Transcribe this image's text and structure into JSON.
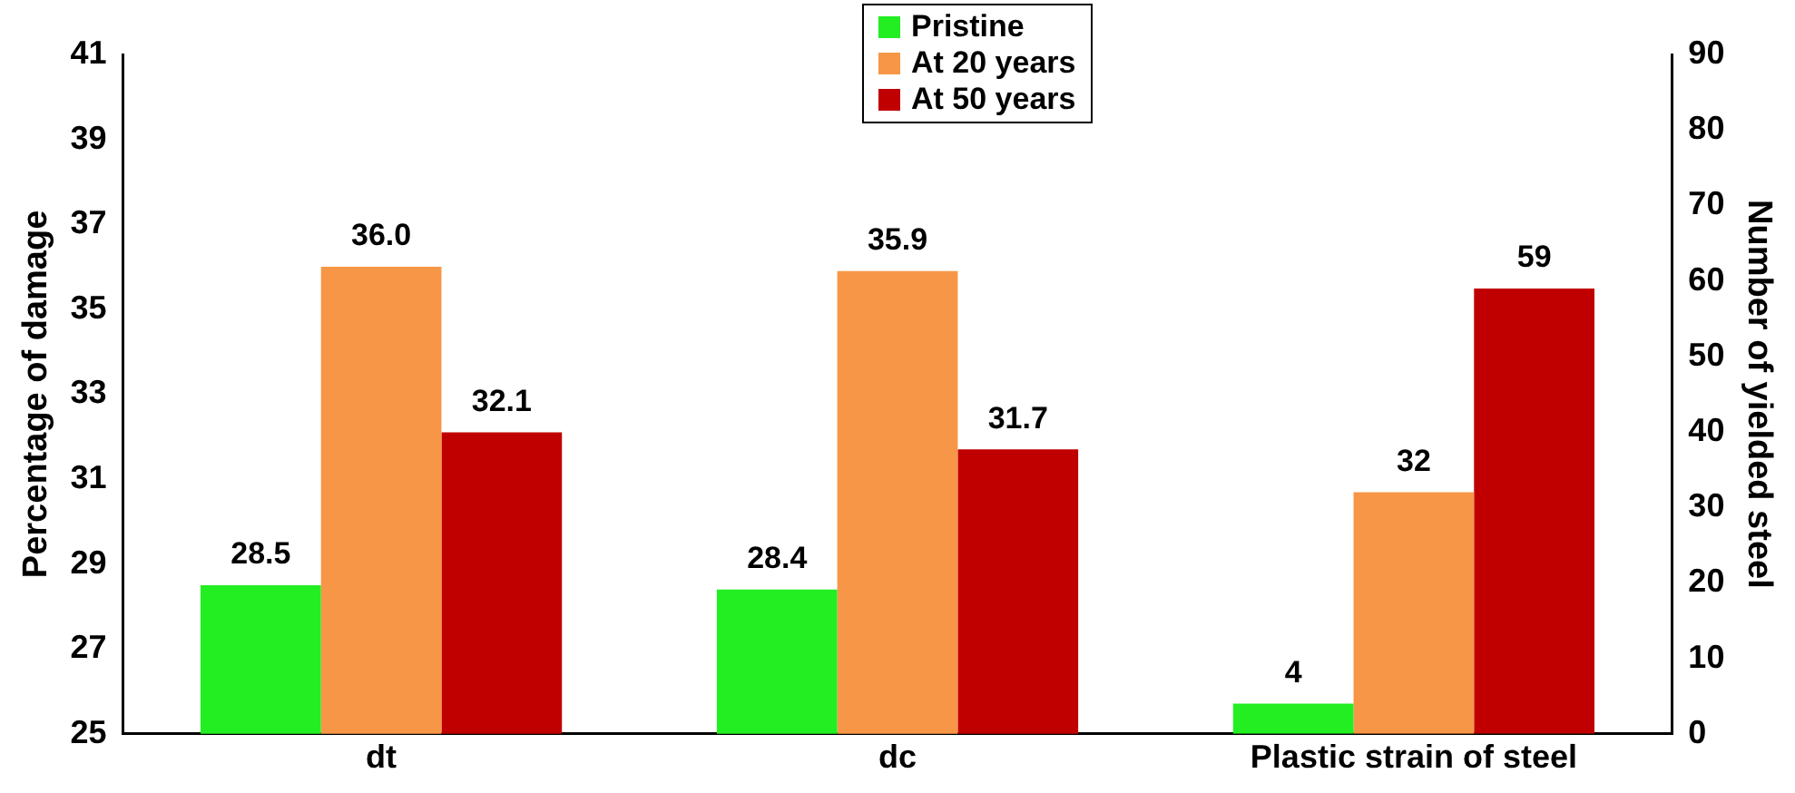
{
  "chart_data": {
    "type": "bar",
    "categories": [
      "dt",
      "dc",
      "Plastic strain of steel"
    ],
    "ylabel": "Percentage of damage",
    "y2label": "Number of yielded steel",
    "ylim": [
      25,
      41
    ],
    "yticks": [
      25,
      27,
      29,
      31,
      33,
      35,
      37,
      39,
      41
    ],
    "y2lim": [
      0,
      90
    ],
    "y2ticks": [
      0,
      10,
      20,
      30,
      40,
      50,
      60,
      70,
      80,
      90
    ],
    "grid": false,
    "legend": "top",
    "series": [
      {
        "name": "Pristine",
        "color": "#22ee22",
        "values": [
          28.5,
          28.4,
          null
        ],
        "value_labels": [
          "28.5",
          "28.4",
          null
        ]
      },
      {
        "name": "At 20 years",
        "color": "#f79646",
        "values": [
          36.0,
          35.9,
          null
        ],
        "value_labels": [
          "36.0",
          "35.9",
          null
        ]
      },
      {
        "name": "At 50 years",
        "color": "#c00000",
        "values": [
          32.1,
          31.7,
          null
        ],
        "value_labels": [
          "32.1",
          "31.7",
          null
        ]
      },
      {
        "color": "#22ee22",
        "axis": "y2",
        "values": [
          null,
          null,
          4
        ],
        "value_labels": [
          null,
          null,
          "4"
        ]
      },
      {
        "color": "#f79646",
        "axis": "y2",
        "values": [
          null,
          null,
          32
        ],
        "value_labels": [
          null,
          null,
          "32"
        ]
      },
      {
        "color": "#c00000",
        "axis": "y2",
        "values": [
          null,
          null,
          59
        ],
        "value_labels": [
          null,
          null,
          "59"
        ]
      }
    ]
  }
}
